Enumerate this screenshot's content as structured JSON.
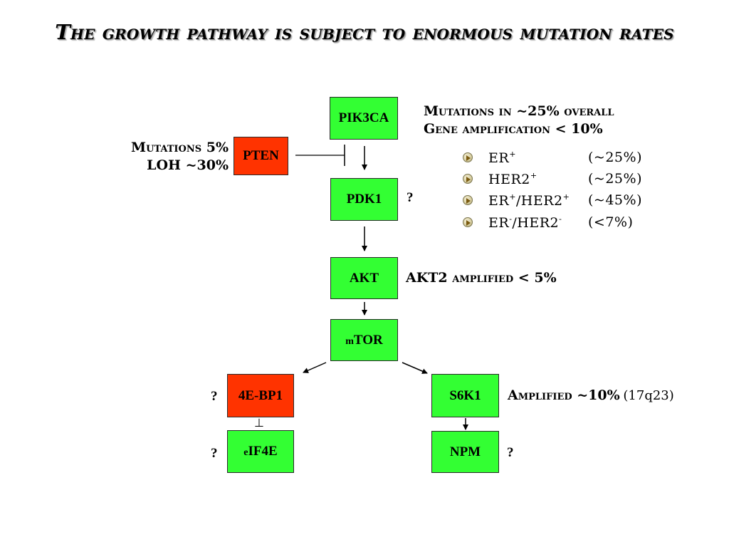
{
  "title": "The growth pathway is subject to enormous mutation rates",
  "nodes": {
    "pik3ca": "PIK3CA",
    "pten": "PTEN",
    "pdk1": "PDK1",
    "akt": "AKT",
    "mtor_prefix": "m",
    "mtor_main": "TOR",
    "fourebp1": "4E-BP1",
    "s6k1": "S6K1",
    "eif4e_prefix": "e",
    "eif4e_main": "IF4E",
    "npm": "NPM"
  },
  "annotations": {
    "pik3ca_line1": "Mutations in ~25% overall",
    "pik3ca_line2": "Gene amplification < 10%",
    "pten_line1": "Mutations 5%",
    "pten_line2": "LOH ~30%",
    "pdk1_q": "?",
    "akt": "AKT2 amplified < 5%",
    "s6k1_main": "Amplified ~10%",
    "s6k1_loc": "(17q23)",
    "fourebp1_q": "?",
    "eif4e_q": "?",
    "npm_q": "?",
    "inhibit_symbol": "⊥"
  },
  "subtypes": [
    {
      "name": "ER",
      "sup1": "+",
      "mid": "",
      "sup2": "",
      "value": "(~25%)"
    },
    {
      "name": "HER2",
      "sup1": "+",
      "mid": "",
      "sup2": "",
      "value": "(~25%)"
    },
    {
      "name": "ER",
      "sup1": "+",
      "mid": "/HER2",
      "sup2": "+",
      "value": "(~45%)"
    },
    {
      "name": "ER",
      "sup1": "-",
      "mid": "/HER2",
      "sup2": "-",
      "value": "(<7%)"
    }
  ],
  "colors": {
    "activated_node": "#33ff33",
    "altered_node": "#ff3300"
  }
}
